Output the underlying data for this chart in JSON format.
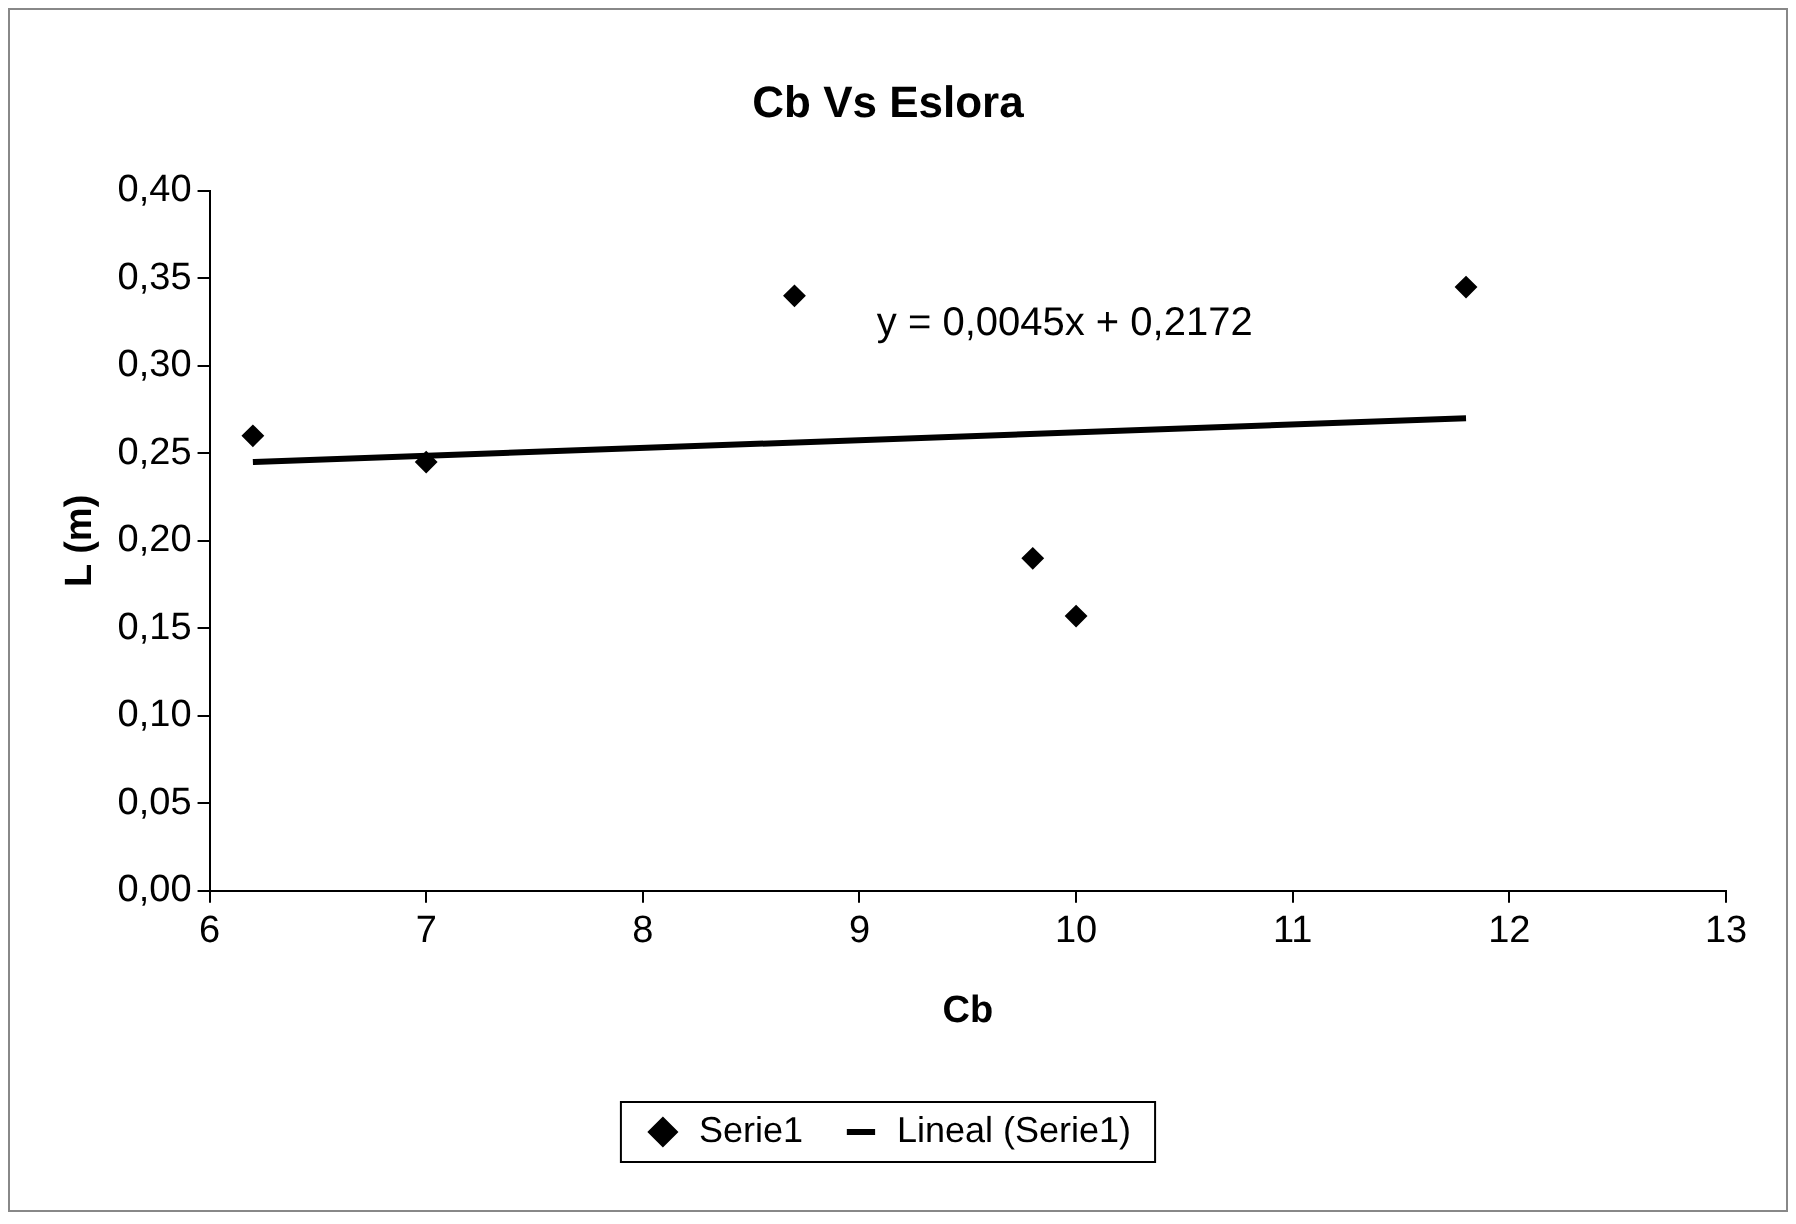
{
  "chart_data": {
    "type": "scatter",
    "title": "Cb Vs Eslora",
    "xlabel": "Cb",
    "ylabel": "L (m)",
    "series": [
      {
        "name": "Serie1",
        "type": "scatter",
        "color": "#000000",
        "marker": "diamond",
        "x": [
          6.2,
          7.0,
          8.7,
          9.8,
          10.0,
          11.8
        ],
        "values": [
          0.26,
          0.245,
          0.34,
          0.19,
          0.157,
          0.345
        ]
      },
      {
        "name": "Lineal (Serie1)",
        "type": "line",
        "color": "#000000",
        "marker": "none",
        "line_style": "solid",
        "x": [
          6.2,
          11.8
        ],
        "values": [
          0.245,
          0.27
        ]
      }
    ],
    "xlim": [
      6,
      13
    ],
    "xticks": [
      6,
      7,
      8,
      9,
      10,
      11,
      12,
      13
    ],
    "ylim": [
      0,
      0.4
    ],
    "yticks": [
      {
        "value": 0,
        "label": "0,00"
      },
      {
        "value": 0.05,
        "label": "0,05"
      },
      {
        "value": 0.1,
        "label": "0,10"
      },
      {
        "value": 0.15,
        "label": "0,15"
      },
      {
        "value": 0.2,
        "label": "0,20"
      },
      {
        "value": 0.25,
        "label": "0,25"
      },
      {
        "value": 0.3,
        "label": "0,30"
      },
      {
        "value": 0.35,
        "label": "0,35"
      },
      {
        "value": 0.4,
        "label": "0,40"
      }
    ],
    "grid": false,
    "legend": "bottom",
    "annotations": [
      "y = 0,0045x + 0,2172"
    ]
  }
}
